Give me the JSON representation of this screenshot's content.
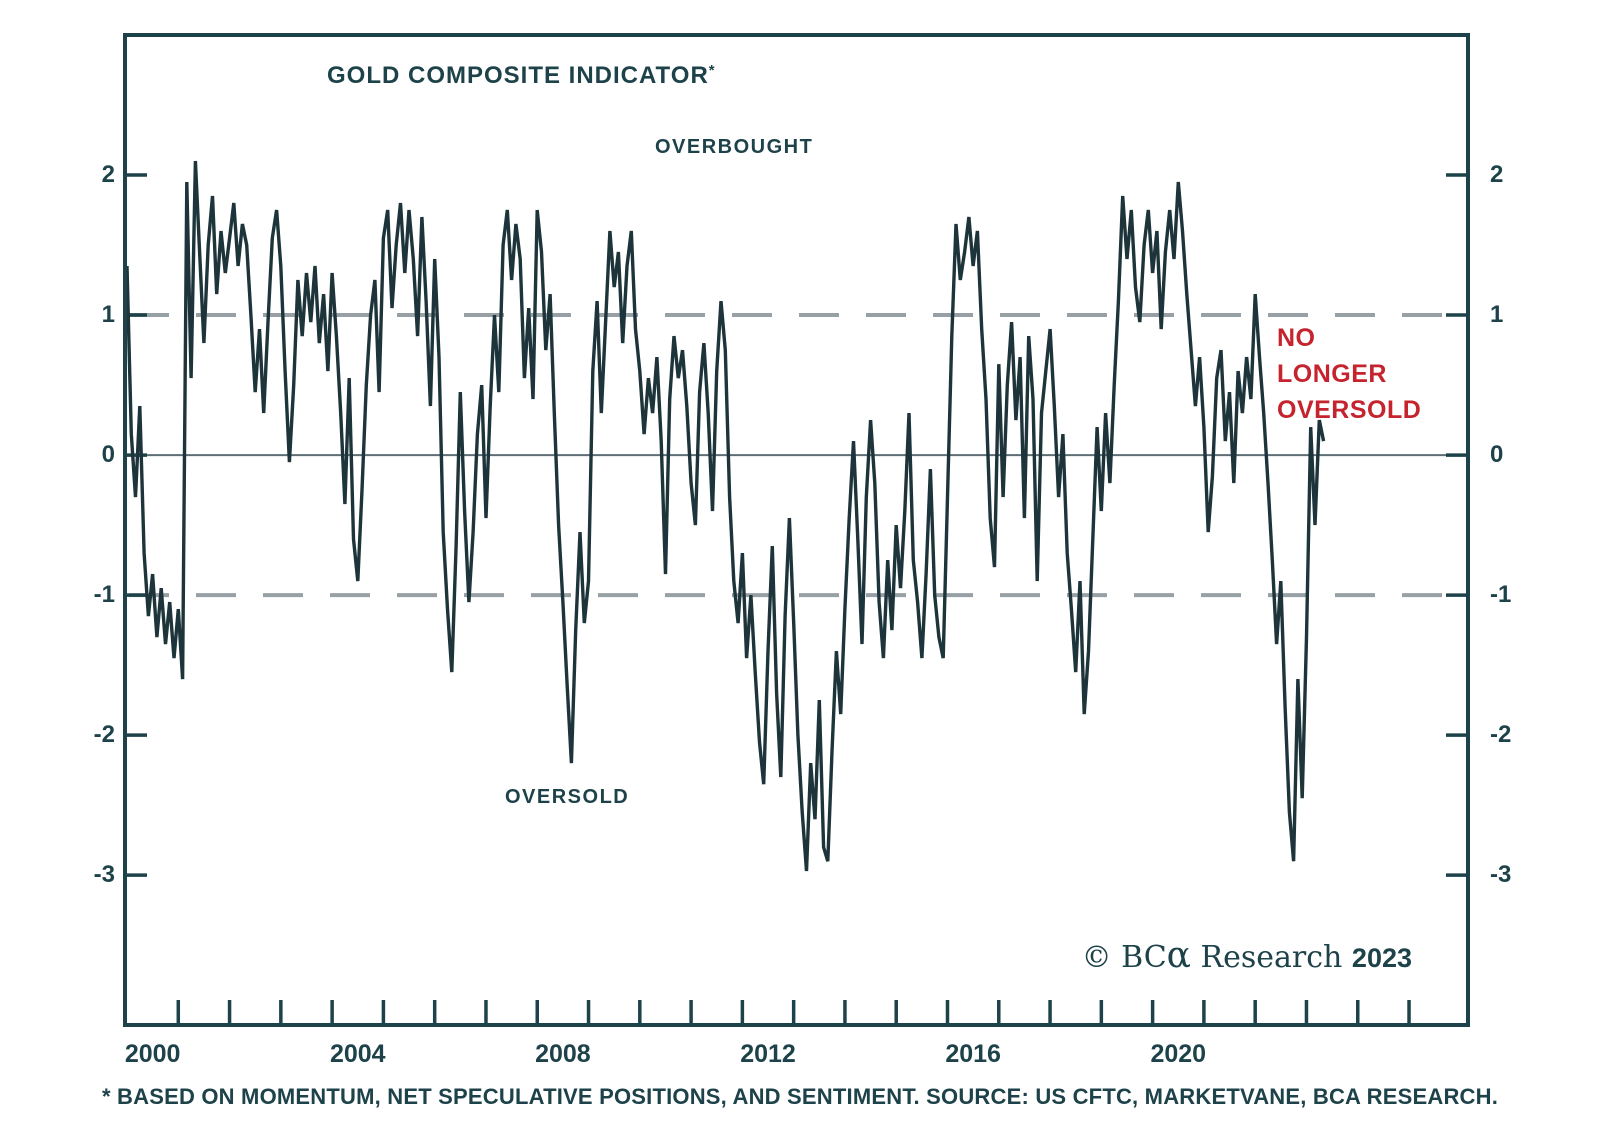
{
  "chart": {
    "title": "GOLD COMPOSITE INDICATOR",
    "title_marker": "*",
    "overbought_label": "OVERBOUGHT",
    "oversold_label": "OVERSOLD",
    "annotation": {
      "lines": [
        "NO",
        "LONGER",
        "OVERSOLD"
      ]
    },
    "copyright": {
      "symbol": "©",
      "brand": "BC",
      "alpha": "α",
      "rest": "Research",
      "year": "2023"
    },
    "footnote": "* BASED ON MOMENTUM, NET SPECULATIVE POSITIONS, AND SENTIMENT. SOURCE: US CFTC, MARKETVANE, BCA RESEARCH."
  },
  "colors": {
    "ink": "#1d4249",
    "series_line": "#1e343b",
    "dashed_gridline": "#97a1a5",
    "zero_line": "#5d6e74",
    "annotation_red": "#c5232d",
    "background": "#ffffff"
  },
  "chart_data": {
    "type": "line",
    "title": "GOLD COMPOSITE INDICATOR*",
    "series_name": "Gold Composite Indicator",
    "xlabel": "",
    "ylabel": "",
    "x_start_year": 2000.0,
    "x_step_years": 0.0833333,
    "y_ticks": [
      2,
      1,
      0,
      -1,
      -2,
      -3
    ],
    "x_tick_years_labeled": [
      2000,
      2004,
      2008,
      2012,
      2016,
      2020
    ],
    "x_minor_tick_year_range": [
      2001,
      2025
    ],
    "gridlines": {
      "dashed_at": [
        1,
        -1
      ],
      "solid_at": [
        0
      ]
    },
    "reference_zones": {
      "overbought_above": 1,
      "oversold_below": -1
    },
    "xlim_plot": [
      2000,
      2026.15
    ],
    "ylim_plot": [
      -4.07,
      3.0
    ],
    "legend_position": "none",
    "values": [
      1.35,
      0.15,
      -0.3,
      0.35,
      -0.7,
      -1.15,
      -0.85,
      -1.3,
      -0.95,
      -1.35,
      -1.05,
      -1.45,
      -1.1,
      -1.6,
      1.95,
      0.55,
      2.1,
      1.45,
      0.8,
      1.5,
      1.85,
      1.15,
      1.6,
      1.3,
      1.55,
      1.8,
      1.35,
      1.65,
      1.5,
      1.0,
      0.45,
      0.9,
      0.3,
      0.95,
      1.55,
      1.75,
      1.35,
      0.6,
      -0.05,
      0.5,
      1.25,
      0.85,
      1.3,
      0.95,
      1.35,
      0.8,
      1.15,
      0.6,
      1.3,
      0.85,
      0.3,
      -0.35,
      0.55,
      -0.6,
      -0.9,
      -0.25,
      0.5,
      1.0,
      1.25,
      0.45,
      1.55,
      1.75,
      1.05,
      1.5,
      1.8,
      1.3,
      1.75,
      1.4,
      0.85,
      1.7,
      1.1,
      0.35,
      1.4,
      0.7,
      -0.55,
      -1.1,
      -1.55,
      -0.65,
      0.45,
      -0.4,
      -1.05,
      -0.55,
      0.15,
      0.5,
      -0.45,
      0.35,
      1.0,
      0.45,
      1.5,
      1.75,
      1.25,
      1.65,
      1.4,
      0.55,
      1.05,
      0.4,
      1.75,
      1.45,
      0.75,
      1.15,
      0.3,
      -0.5,
      -1.05,
      -1.65,
      -2.2,
      -1.25,
      -0.55,
      -1.2,
      -0.9,
      0.6,
      1.1,
      0.3,
      0.95,
      1.6,
      1.2,
      1.45,
      0.8,
      1.35,
      1.6,
      0.9,
      0.6,
      0.15,
      0.55,
      0.3,
      0.7,
      0.1,
      -0.85,
      0.4,
      0.85,
      0.55,
      0.75,
      0.35,
      -0.2,
      -0.5,
      0.45,
      0.8,
      0.3,
      -0.4,
      0.6,
      1.1,
      0.75,
      -0.3,
      -0.9,
      -1.2,
      -0.7,
      -1.45,
      -1.0,
      -1.55,
      -2.05,
      -2.35,
      -1.4,
      -0.65,
      -1.7,
      -2.3,
      -1.15,
      -0.45,
      -1.2,
      -2.0,
      -2.55,
      -2.97,
      -2.2,
      -2.6,
      -1.75,
      -2.8,
      -2.9,
      -2.1,
      -1.4,
      -1.85,
      -1.1,
      -0.45,
      0.1,
      -0.6,
      -1.35,
      -0.3,
      0.25,
      -0.2,
      -1.05,
      -1.45,
      -0.75,
      -1.25,
      -0.5,
      -0.95,
      -0.4,
      0.3,
      -0.75,
      -1.05,
      -1.45,
      -0.85,
      -0.1,
      -1.0,
      -1.3,
      -1.45,
      -0.3,
      0.85,
      1.65,
      1.25,
      1.45,
      1.7,
      1.35,
      1.6,
      0.9,
      0.4,
      -0.45,
      -0.8,
      0.65,
      -0.3,
      0.5,
      0.95,
      0.25,
      0.7,
      -0.45,
      0.85,
      0.4,
      -0.9,
      0.3,
      0.6,
      0.9,
      0.35,
      -0.3,
      0.15,
      -0.7,
      -1.1,
      -1.55,
      -0.9,
      -1.85,
      -1.4,
      -0.6,
      0.2,
      -0.4,
      0.3,
      -0.2,
      0.5,
      1.1,
      1.85,
      1.4,
      1.75,
      1.2,
      0.95,
      1.5,
      1.75,
      1.3,
      1.6,
      0.9,
      1.45,
      1.75,
      1.4,
      1.95,
      1.6,
      1.15,
      0.75,
      0.35,
      0.7,
      0.2,
      -0.55,
      -0.15,
      0.55,
      0.75,
      0.1,
      0.45,
      -0.2,
      0.6,
      0.3,
      0.7,
      0.4,
      1.15,
      0.7,
      0.3,
      -0.2,
      -0.75,
      -1.35,
      -0.9,
      -1.8,
      -2.55,
      -2.9,
      -1.6,
      -2.45,
      -1.3,
      0.2,
      -0.5,
      0.25,
      0.1
    ]
  }
}
